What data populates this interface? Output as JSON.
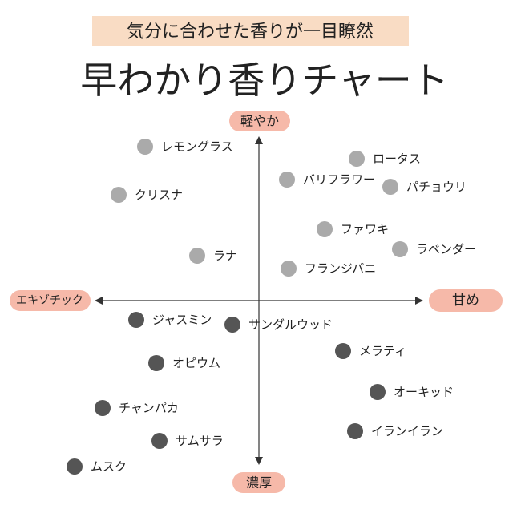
{
  "header": {
    "subtitle": "気分に合わせた香りが一目瞭然",
    "title": "早わかり香りチャート"
  },
  "axes": {
    "top": "軽やか",
    "bottom": "濃厚",
    "left": "エキゾチック",
    "right": "甘め"
  },
  "nodes": [
    {
      "label": "レモングラス"
    },
    {
      "label": "ロータス"
    },
    {
      "label": "バリフラワー"
    },
    {
      "label": "パチョウリ"
    },
    {
      "label": "クリスナ"
    },
    {
      "label": "ファワキ"
    },
    {
      "label": "ラベンダー"
    },
    {
      "label": "ラナ"
    },
    {
      "label": "フランジパニ"
    },
    {
      "label": "ジャスミン"
    },
    {
      "label": "サンダルウッド"
    },
    {
      "label": "メラティ"
    },
    {
      "label": "オピウム"
    },
    {
      "label": "オーキッド"
    },
    {
      "label": "チャンパカ"
    },
    {
      "label": "イランイラン"
    },
    {
      "label": "サムサラ"
    },
    {
      "label": "ムスク"
    }
  ]
}
